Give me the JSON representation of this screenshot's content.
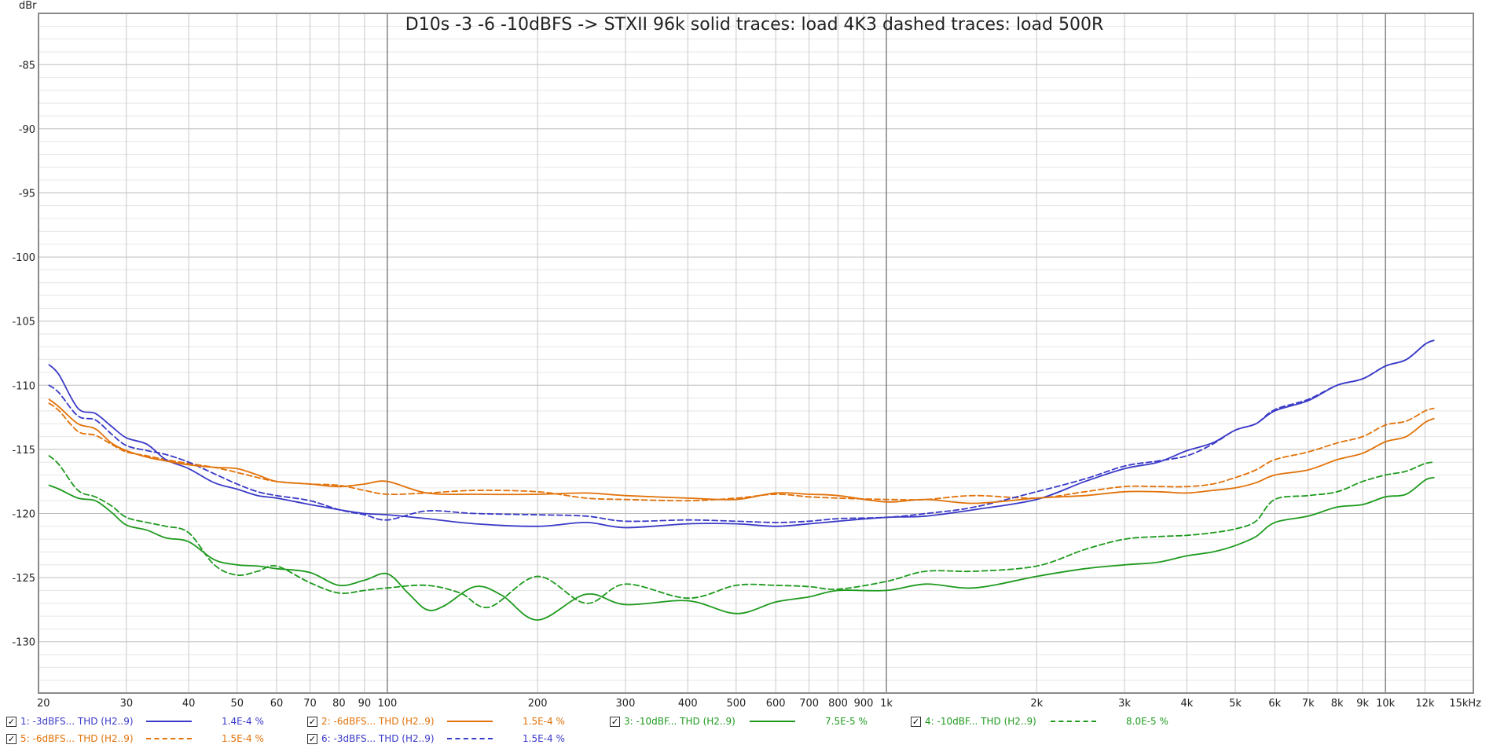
{
  "chart_data": {
    "type": "line",
    "title": "D10s -3 -6 -10dBFS -> STXII 96k solid traces: load 4K3  dashed traces: load 500R",
    "ylabel": "dBr",
    "xlabel": "",
    "x_scale": "log",
    "xlim": [
      20,
      15000
    ],
    "ylim": [
      -134,
      -81
    ],
    "grid": true,
    "legend_position": "bottom",
    "y_ticks": [
      -85,
      -90,
      -95,
      -100,
      -105,
      -110,
      -115,
      -120,
      -125,
      -130
    ],
    "y_tick_labels": [
      "-85",
      "-90",
      "-95",
      "-100",
      "-105",
      "-110",
      "-115",
      "-120",
      "-125",
      "-130"
    ],
    "x_ticks": [
      20,
      30,
      40,
      50,
      60,
      70,
      80,
      90,
      100,
      200,
      300,
      400,
      500,
      600,
      700,
      800,
      900,
      1000,
      2000,
      3000,
      4000,
      5000,
      6000,
      7000,
      8000,
      9000,
      10000,
      12000,
      15000
    ],
    "x_tick_labels": [
      "20",
      "30",
      "40",
      "50",
      "60",
      "70",
      "80",
      "90",
      "100",
      "200",
      "300",
      "400",
      "500",
      "600",
      "700",
      "800",
      "900",
      "1k",
      "2k",
      "3k",
      "4k",
      "5k",
      "6k",
      "7k",
      "8k",
      "9k",
      "10k",
      "12k",
      "15kHz"
    ],
    "series": [
      {
        "name": "1: -3dBFS... THD (H2..9)",
        "legend_value": "1.4E-4 %",
        "color": "#3a3ac8",
        "dash": "solid",
        "x": [
          21,
          22,
          24,
          26,
          28,
          30,
          33,
          36,
          40,
          45,
          50,
          55,
          60,
          70,
          80,
          90,
          100,
          120,
          150,
          200,
          250,
          300,
          400,
          500,
          600,
          700,
          800,
          1000,
          1200,
          1500,
          2000,
          2500,
          3000,
          3500,
          4000,
          4500,
          5000,
          5500,
          6000,
          7000,
          8000,
          9000,
          10000,
          11000,
          12000,
          12500
        ],
        "y": [
          -108.4,
          -109.2,
          -111.8,
          -112.2,
          -113.2,
          -114.1,
          -114.6,
          -115.8,
          -116.5,
          -117.6,
          -118.1,
          -118.6,
          -118.8,
          -119.3,
          -119.7,
          -120.0,
          -120.1,
          -120.4,
          -120.8,
          -121.0,
          -120.7,
          -121.1,
          -120.8,
          -120.8,
          -121.0,
          -120.8,
          -120.6,
          -120.3,
          -120.2,
          -119.7,
          -118.9,
          -117.5,
          -116.5,
          -116.0,
          -115.1,
          -114.5,
          -113.5,
          -113.0,
          -112.0,
          -111.2,
          -110.0,
          -109.5,
          -108.5,
          -108.0,
          -106.8,
          -106.5
        ]
      },
      {
        "name": "2: -6dBFS... THD (H2..9)",
        "legend_value": "1.5E-4 %",
        "color": "#e2720a",
        "dash": "solid",
        "x": [
          21,
          22,
          24,
          26,
          28,
          30,
          33,
          36,
          40,
          45,
          50,
          55,
          60,
          70,
          80,
          90,
          100,
          120,
          150,
          200,
          250,
          300,
          400,
          500,
          600,
          700,
          800,
          1000,
          1200,
          1500,
          2000,
          2500,
          3000,
          3500,
          4000,
          4500,
          5000,
          5500,
          6000,
          7000,
          8000,
          9000,
          10000,
          11000,
          12000,
          12500
        ],
        "y": [
          -111.1,
          -111.7,
          -113.0,
          -113.4,
          -114.5,
          -115.1,
          -115.6,
          -115.9,
          -116.2,
          -116.4,
          -116.5,
          -117.0,
          -117.5,
          -117.7,
          -117.9,
          -117.7,
          -117.5,
          -118.4,
          -118.5,
          -118.5,
          -118.4,
          -118.6,
          -118.8,
          -118.9,
          -118.4,
          -118.5,
          -118.6,
          -119.1,
          -118.9,
          -119.2,
          -118.8,
          -118.6,
          -118.3,
          -118.3,
          -118.4,
          -118.2,
          -118.0,
          -117.6,
          -117.0,
          -116.6,
          -115.8,
          -115.3,
          -114.4,
          -114.0,
          -112.9,
          -112.6
        ]
      },
      {
        "name": "3: -10dBF... THD (H2..9)",
        "legend_value": "7.5E-5 %",
        "color": "#1e9a1e",
        "dash": "solid",
        "x": [
          21,
          22,
          24,
          26,
          28,
          30,
          33,
          36,
          40,
          45,
          50,
          55,
          60,
          70,
          80,
          90,
          100,
          110,
          120,
          130,
          150,
          170,
          200,
          250,
          300,
          400,
          500,
          600,
          700,
          800,
          1000,
          1200,
          1500,
          2000,
          2500,
          3000,
          3500,
          4000,
          4500,
          5000,
          5500,
          6000,
          7000,
          8000,
          9000,
          10000,
          11000,
          12000,
          12500
        ],
        "y": [
          -117.8,
          -118.1,
          -118.8,
          -119.0,
          -119.9,
          -120.9,
          -121.3,
          -121.9,
          -122.2,
          -123.6,
          -124.0,
          -124.1,
          -124.3,
          -124.6,
          -125.6,
          -125.2,
          -124.7,
          -126.2,
          -127.5,
          -127.2,
          -125.7,
          -126.4,
          -128.3,
          -126.3,
          -127.1,
          -126.8,
          -127.8,
          -126.9,
          -126.5,
          -126.0,
          -126.0,
          -125.5,
          -125.8,
          -124.9,
          -124.3,
          -124.0,
          -123.8,
          -123.3,
          -123.0,
          -122.5,
          -121.8,
          -120.7,
          -120.2,
          -119.5,
          -119.3,
          -118.7,
          -118.5,
          -117.4,
          -117.2
        ]
      },
      {
        "name": "4: -10dBF... THD (H2..9)",
        "legend_value": "8.0E-5 %",
        "color": "#1e9a1e",
        "dash": "dashed",
        "x": [
          21,
          22,
          24,
          26,
          28,
          30,
          33,
          36,
          40,
          45,
          50,
          55,
          60,
          70,
          80,
          90,
          100,
          120,
          140,
          160,
          200,
          250,
          300,
          400,
          500,
          600,
          700,
          800,
          1000,
          1200,
          1500,
          2000,
          2500,
          3000,
          3500,
          4000,
          4500,
          5000,
          5500,
          6000,
          7000,
          8000,
          9000,
          10000,
          11000,
          12000,
          12500
        ],
        "y": [
          -115.5,
          -116.2,
          -118.2,
          -118.7,
          -119.4,
          -120.3,
          -120.7,
          -121.0,
          -121.5,
          -124.0,
          -124.8,
          -124.5,
          -124.1,
          -125.4,
          -126.2,
          -126.0,
          -125.8,
          -125.6,
          -126.2,
          -127.3,
          -124.9,
          -127.0,
          -125.5,
          -126.6,
          -125.6,
          -125.6,
          -125.7,
          -125.9,
          -125.3,
          -124.5,
          -124.5,
          -124.1,
          -122.8,
          -122.0,
          -121.8,
          -121.7,
          -121.5,
          -121.2,
          -120.6,
          -118.9,
          -118.6,
          -118.3,
          -117.5,
          -117.0,
          -116.7,
          -116.1,
          -116.0
        ]
      },
      {
        "name": "5: -6dBFS... THD (H2..9)",
        "legend_value": "1.5E-4 %",
        "color": "#e2720a",
        "dash": "dashed",
        "x": [
          21,
          22,
          24,
          26,
          28,
          30,
          33,
          36,
          40,
          45,
          50,
          55,
          60,
          70,
          80,
          90,
          100,
          120,
          150,
          200,
          250,
          300,
          400,
          500,
          600,
          700,
          800,
          1000,
          1200,
          1500,
          2000,
          2500,
          3000,
          3500,
          4000,
          4500,
          5000,
          5500,
          6000,
          7000,
          8000,
          9000,
          10000,
          11000,
          12000,
          12500
        ],
        "y": [
          -111.4,
          -112.0,
          -113.6,
          -113.9,
          -114.6,
          -115.2,
          -115.5,
          -115.8,
          -116.1,
          -116.4,
          -116.8,
          -117.2,
          -117.5,
          -117.7,
          -117.8,
          -118.2,
          -118.5,
          -118.4,
          -118.2,
          -118.3,
          -118.8,
          -118.9,
          -119.0,
          -118.8,
          -118.5,
          -118.7,
          -118.8,
          -118.9,
          -118.9,
          -118.6,
          -118.8,
          -118.3,
          -117.9,
          -117.9,
          -117.9,
          -117.7,
          -117.2,
          -116.6,
          -115.8,
          -115.2,
          -114.5,
          -114.0,
          -113.1,
          -112.8,
          -112.0,
          -111.8
        ]
      },
      {
        "name": "6: -3dBFS... THD (H2..9)",
        "legend_value": "1.5E-4 %",
        "color": "#3a3ac8",
        "dash": "dashed",
        "x": [
          21,
          22,
          24,
          26,
          28,
          30,
          33,
          36,
          40,
          45,
          50,
          55,
          60,
          70,
          80,
          90,
          100,
          120,
          150,
          200,
          250,
          300,
          400,
          500,
          600,
          700,
          800,
          1000,
          1200,
          1500,
          2000,
          2500,
          3000,
          3500,
          4000,
          4500,
          5000,
          5500,
          6000,
          7000,
          8000,
          9000,
          10000,
          11000,
          12000,
          12500
        ],
        "y": [
          -110.0,
          -110.6,
          -112.4,
          -112.7,
          -113.8,
          -114.7,
          -115.1,
          -115.4,
          -116.0,
          -116.9,
          -117.7,
          -118.3,
          -118.6,
          -119.0,
          -119.7,
          -120.1,
          -120.5,
          -119.8,
          -120.0,
          -120.1,
          -120.2,
          -120.6,
          -120.5,
          -120.6,
          -120.7,
          -120.6,
          -120.4,
          -120.3,
          -120.0,
          -119.5,
          -118.3,
          -117.3,
          -116.3,
          -115.9,
          -115.5,
          -114.6,
          -113.5,
          -113.0,
          -111.9,
          -111.1,
          -110.0,
          -109.5,
          -108.5,
          -108.0,
          -106.8,
          -106.5
        ]
      }
    ]
  }
}
